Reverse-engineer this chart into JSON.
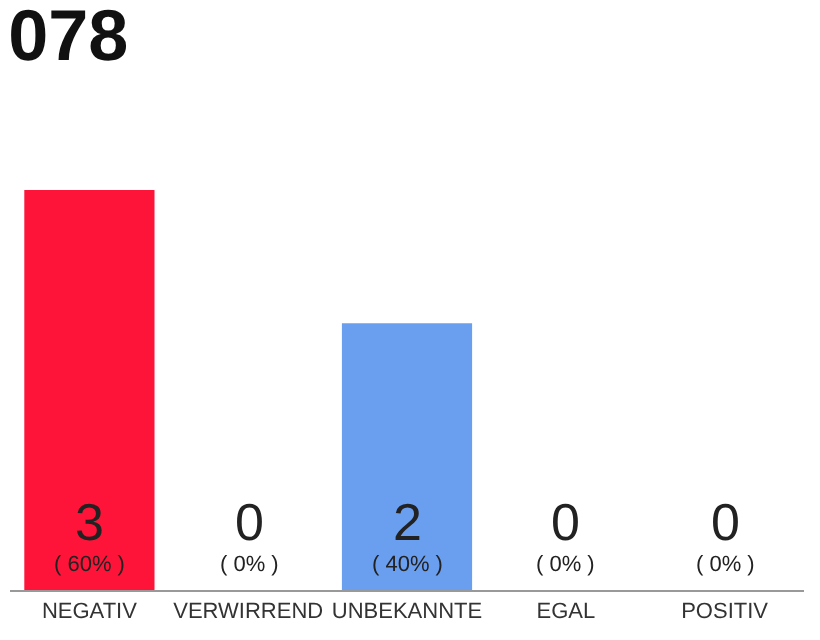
{
  "chart_data": {
    "type": "bar",
    "title": "078",
    "categories": [
      "NEGATIV",
      "VERWIRREND",
      "UNBEKANNTE",
      "EGAL",
      "POSITIV"
    ],
    "values": [
      3,
      0,
      2,
      0,
      0
    ],
    "colors": [
      "#ff1439",
      "#eeeeee",
      "#6a9ff0",
      "#eeeeee",
      "#eeeeee"
    ],
    "value_labels": [
      "3\n( 60% )",
      "0\n( 0% )",
      "2\n( 40% )",
      "0\n( 0% )",
      "0\n( 0% )"
    ],
    "tick_labels": "x",
    "legend": false
  }
}
